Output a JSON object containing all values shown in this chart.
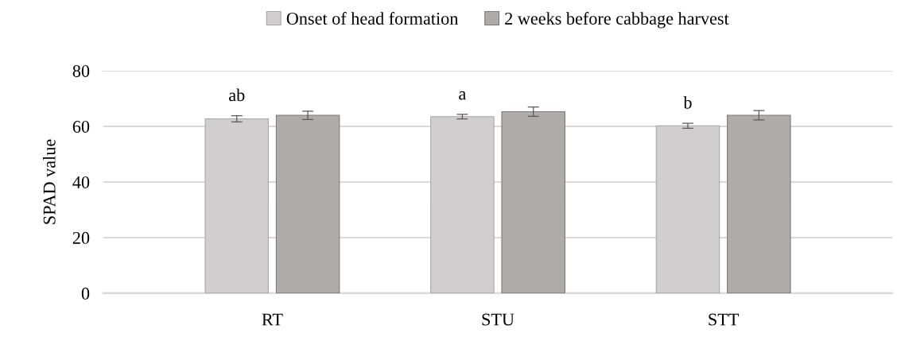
{
  "chart_data": {
    "type": "bar",
    "ylabel": "SPAD value",
    "categories": [
      "RT",
      "STU",
      "STT"
    ],
    "series": [
      {
        "name": "Onset of head formation",
        "color": "#d0cecf",
        "values": [
          62.7,
          63.5,
          60.2
        ],
        "errors": [
          1.1,
          0.8,
          0.9
        ]
      },
      {
        "name": "2 weeks before cabbage harvest",
        "color": "#afabab",
        "values": [
          64.0,
          65.3,
          64.0
        ],
        "errors": [
          1.5,
          1.7,
          1.7
        ]
      }
    ],
    "annotations": [
      "ab",
      "a",
      "b"
    ],
    "ylim": [
      0,
      80
    ],
    "yticks": [
      0,
      20,
      40,
      60,
      80
    ],
    "grid": "y",
    "legend": "top"
  }
}
